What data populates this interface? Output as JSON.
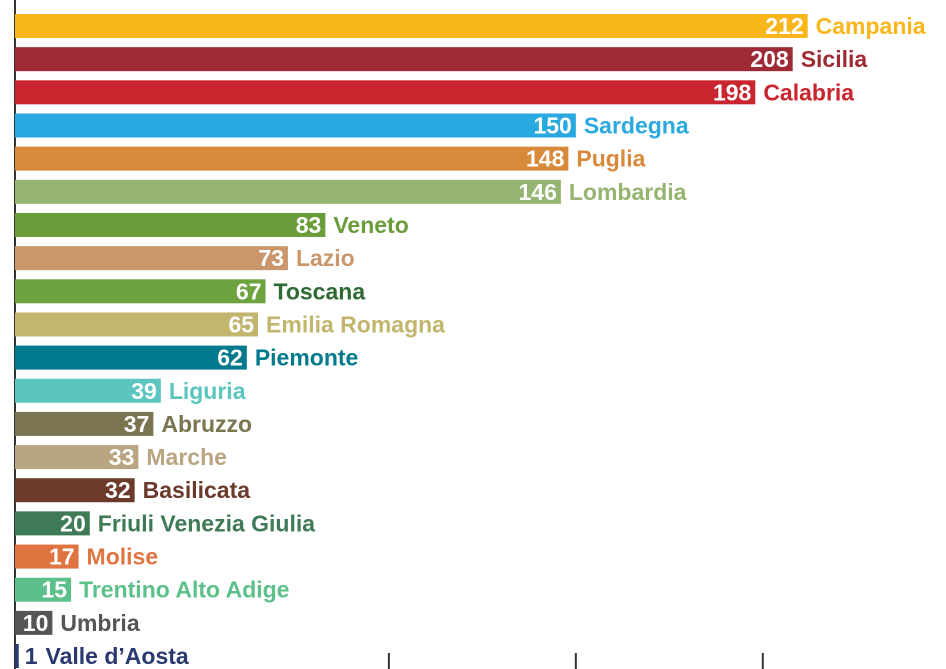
{
  "chart_data": {
    "type": "hbar",
    "categories": [
      "Campania",
      "Sicilia",
      "Calabria",
      "Sardegna",
      "Puglia",
      "Lombardia",
      "Veneto",
      "Lazio",
      "Toscana",
      "Emilia Romagna",
      "Piemonte",
      "Liguria",
      "Abruzzo",
      "Marche",
      "Basilicata",
      "Friuli Venezia Giulia",
      "Molise",
      "Trentino Alto Adige",
      "Umbria",
      "Valle d’Aosta"
    ],
    "values": [
      212,
      208,
      198,
      150,
      148,
      146,
      83,
      73,
      67,
      65,
      62,
      39,
      37,
      33,
      32,
      20,
      17,
      15,
      10,
      1
    ],
    "colors": [
      "#f9b61a",
      "#9e2a35",
      "#c9252e",
      "#2aa8e0",
      "#d9893a",
      "#95b46f",
      "#6a9c3a",
      "#c9976b",
      "#6ea23f",
      "#c2b66e",
      "#007a8c",
      "#5bc5c0",
      "#7a7450",
      "#b9a581",
      "#6b3a2a",
      "#3d7a55",
      "#e07440",
      "#5cc08a",
      "#555555",
      "#2a3a6e"
    ],
    "label_colors": [
      "#f9b61a",
      "#9e2a35",
      "#c9252e",
      "#2aa8e0",
      "#d9893a",
      "#95b46f",
      "#6a9c3a",
      "#c9976b",
      "#2f6a35",
      "#c2b66e",
      "#007a8c",
      "#5bc5c0",
      "#7a7450",
      "#b9a581",
      "#6b3a2a",
      "#3d7a55",
      "#e07440",
      "#5cc08a",
      "#555555",
      "#2a3a6e"
    ],
    "xlim": [
      0,
      249
    ],
    "xticks": [
      100,
      150,
      200
    ]
  }
}
